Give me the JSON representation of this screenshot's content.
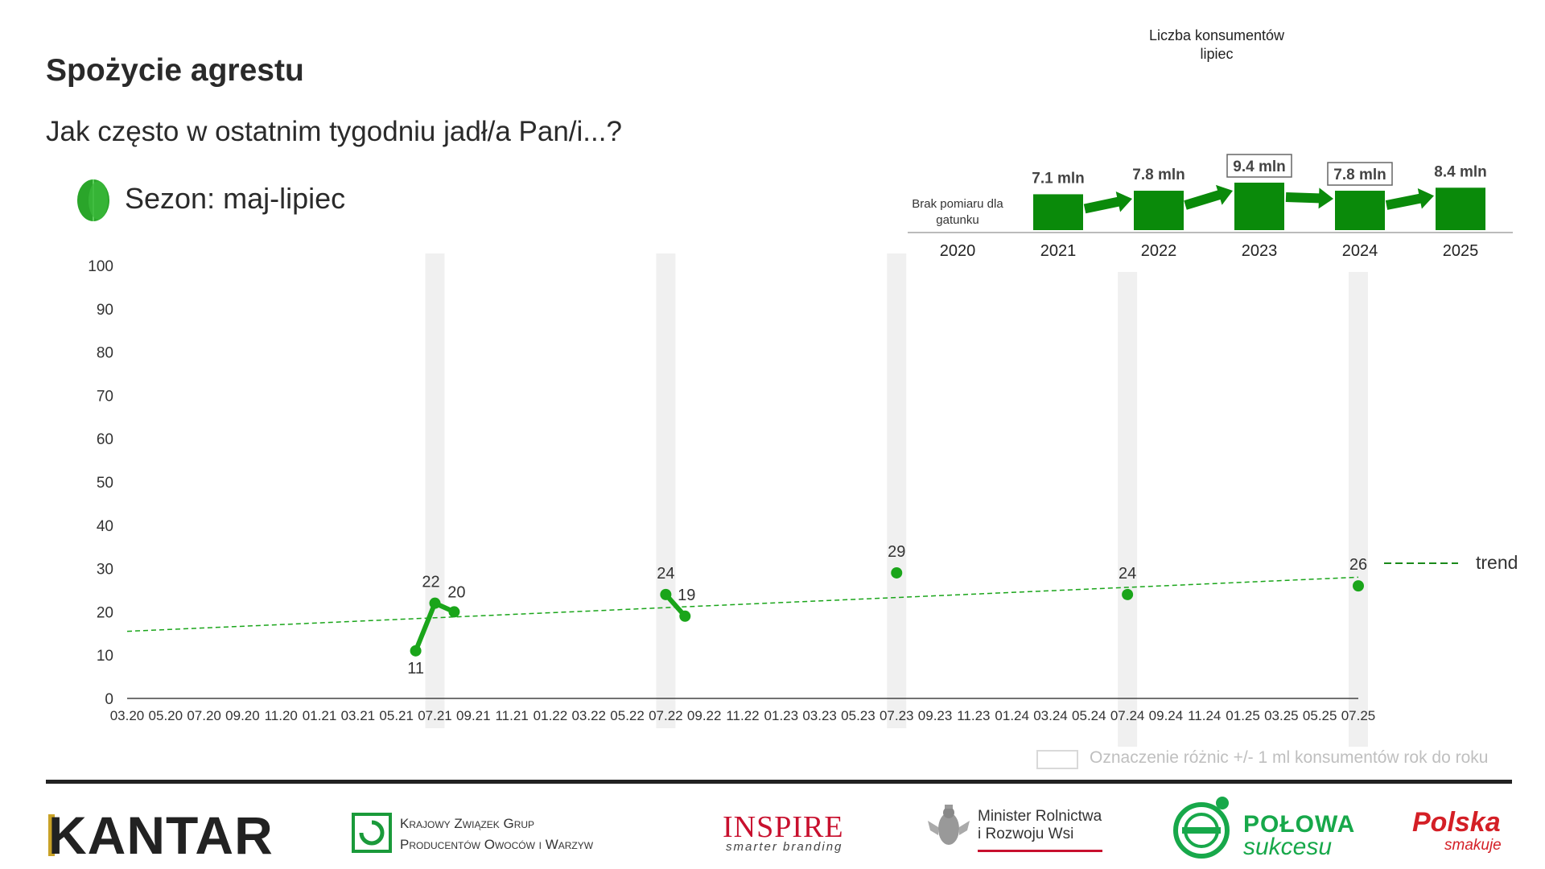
{
  "header": {
    "title": "Spożycie agrestu",
    "subtitle": "Jak często w ostatnim tygodniu jadł/a Pan/i...?",
    "season": "Sezon: maj-lipiec"
  },
  "colors": {
    "series": "#1aa51a",
    "trend": "#1aa51a",
    "bars": "#0a8a0a",
    "highlight_band": "#f0f0f0",
    "legend_text": "#bfbfbf"
  },
  "consumers": {
    "title_line1": "Liczba konsumentów",
    "title_line2": "lipiec",
    "no_measure_line1": "Brak pomiaru dla",
    "no_measure_line2": "gatunku",
    "years": [
      "2020",
      "2021",
      "2022",
      "2023",
      "2024",
      "2025"
    ],
    "values": [
      null,
      7.1,
      7.8,
      9.4,
      7.8,
      8.4
    ],
    "labels": [
      "",
      "7.1 mln",
      "7.8 mln",
      "9.4 mln",
      "7.8 mln",
      "8.4 mln"
    ],
    "boxed": [
      false,
      false,
      false,
      true,
      true,
      false
    ]
  },
  "chart_data": {
    "type": "line",
    "ylim": [
      0,
      100
    ],
    "y_ticks": [
      "0",
      "10",
      "20",
      "30",
      "40",
      "50",
      "60",
      "70",
      "80",
      "90",
      "100"
    ],
    "x_ticks": [
      "03.20",
      "05.20",
      "07.20",
      "09.20",
      "11.20",
      "01.21",
      "03.21",
      "05.21",
      "07.21",
      "09.21",
      "11.21",
      "01.22",
      "03.22",
      "05.22",
      "07.22",
      "09.22",
      "11.22",
      "01.23",
      "03.23",
      "05.23",
      "07.23",
      "09.23",
      "11.23",
      "01.24",
      "03.24",
      "05.24",
      "07.24",
      "09.24",
      "11.24",
      "01.25",
      "03.25",
      "05.25",
      "07.25"
    ],
    "highlight_bands": [
      "07.21",
      "07.22",
      "07.23",
      "07.24",
      "07.25"
    ],
    "series": [
      {
        "points": [
          {
            "x": "06.21",
            "y": 11,
            "label": "11"
          },
          {
            "x": "07.21",
            "y": 22,
            "label": "22"
          },
          {
            "x": "08.21",
            "y": 20,
            "label": "20"
          },
          {
            "x": "07.22",
            "y": 24,
            "label": "24"
          },
          {
            "x": "08.22",
            "y": 19,
            "label": "19"
          },
          {
            "x": "07.23",
            "y": 29,
            "label": "29"
          },
          {
            "x": "07.24",
            "y": 24,
            "label": "24"
          },
          {
            "x": "07.25",
            "y": 26,
            "label": "26"
          }
        ],
        "segments": [
          [
            0,
            1,
            2
          ],
          [
            3,
            4
          ],
          [
            5
          ],
          [
            6
          ],
          [
            7
          ]
        ]
      }
    ],
    "trend": {
      "name": "trend",
      "start": {
        "x": "03.20",
        "y": 15.5
      },
      "end": {
        "x": "07.25",
        "y": 28
      }
    },
    "legend_note": "Oznaczenie różnic +/- 1 ml konsumentów rok do roku"
  },
  "footer": {
    "kantar": "KANTAR",
    "kz_line1": "Krajowy Związek Grup",
    "kz_line2": "Producentów Owoców i Warzyw",
    "inspire": "INSPIRE",
    "inspire_sub": "smarter branding",
    "minister_line1": "Minister Rolnictwa",
    "minister_line2": "i Rozwoju Wsi",
    "polowa_line1": "POŁOWA",
    "polowa_line2": "sukcesu",
    "polska_line1": "Polska",
    "polska_line2": "smakuje"
  }
}
